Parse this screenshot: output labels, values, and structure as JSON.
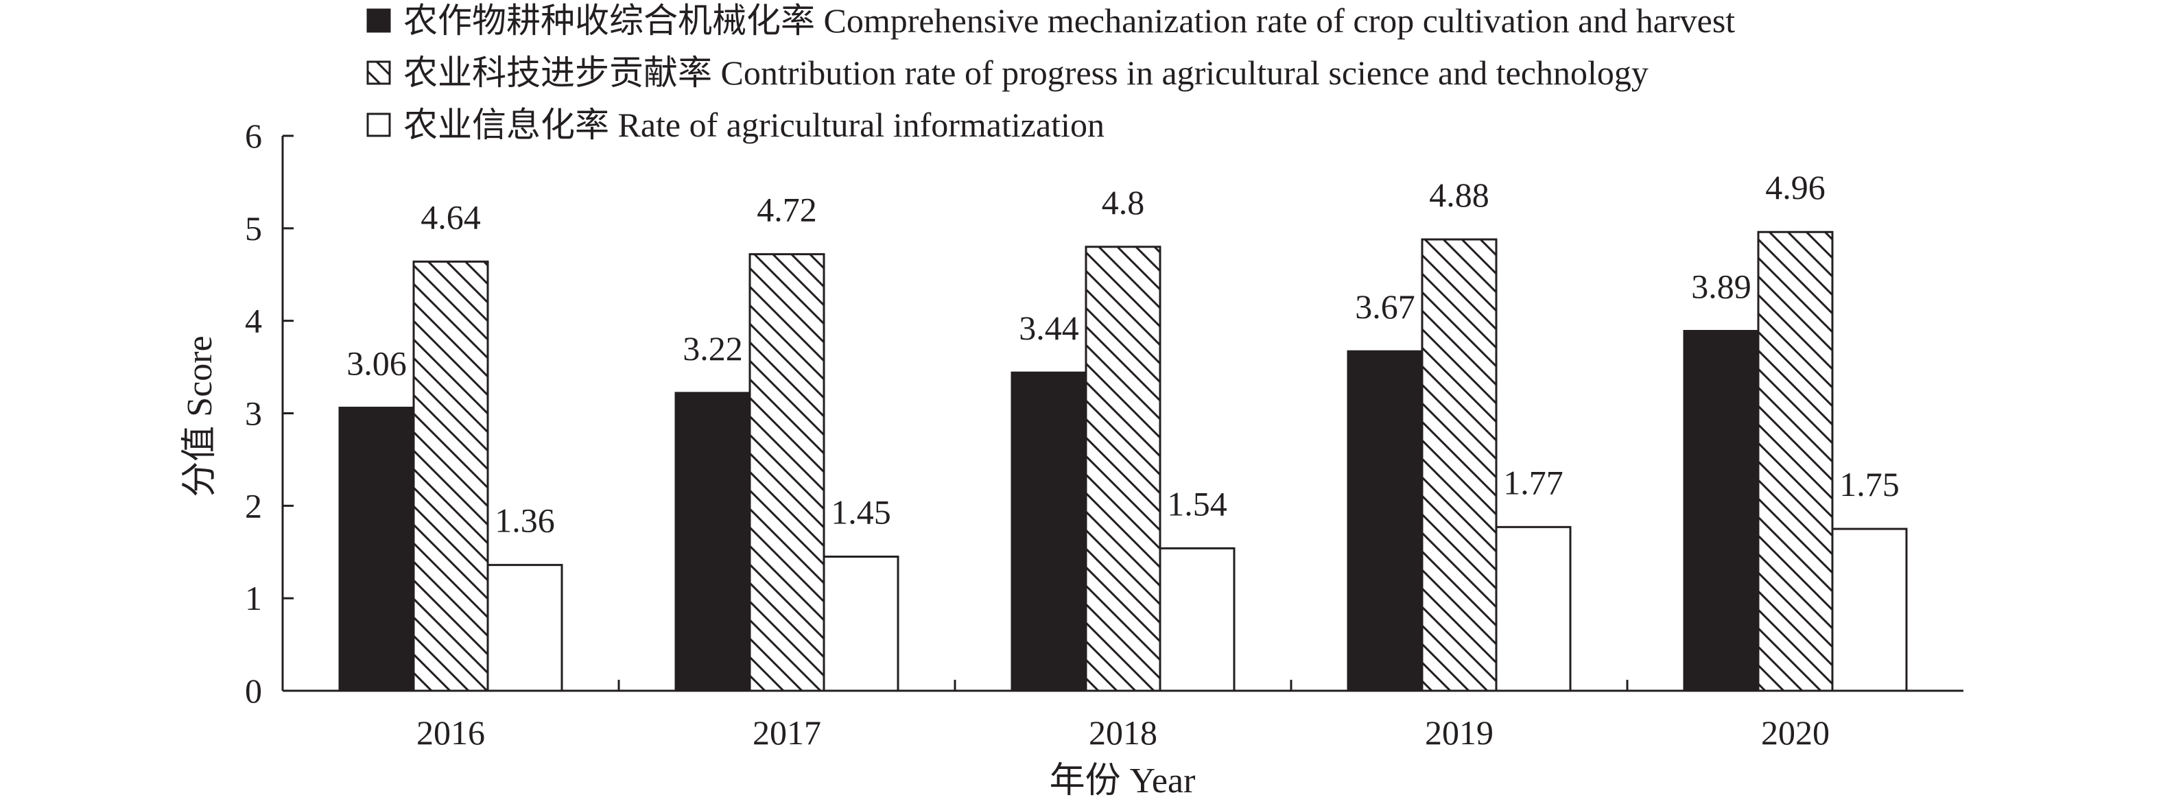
{
  "chart_data": {
    "type": "bar",
    "title": "",
    "xlabel": "年份 Year",
    "ylabel": "分值 Score",
    "ylim": [
      0,
      6
    ],
    "yticks": [
      "0",
      "1",
      "2",
      "3",
      "4",
      "5",
      "6"
    ],
    "categories": [
      "2016",
      "2017",
      "2018",
      "2019",
      "2020"
    ],
    "legend_position": "top",
    "grid": false,
    "series": [
      {
        "name": "农作物耕种收综合机械化率 Comprehensive mechanization rate of crop cultivation and harvest",
        "values": [
          3.06,
          3.22,
          3.44,
          3.67,
          3.89
        ],
        "labels": [
          "3.06",
          "3.22",
          "3.44",
          "3.67",
          "3.89"
        ],
        "fill": "solid",
        "color": "#231f20"
      },
      {
        "name": "农业科技进步贡献率 Contribution rate of progress in agricultural science and technology",
        "values": [
          4.64,
          4.72,
          4.8,
          4.88,
          4.96
        ],
        "labels": [
          "4.64",
          "4.72",
          "4.8",
          "4.88",
          "4.96"
        ],
        "fill": "hatch",
        "color": "#231f20"
      },
      {
        "name": "农业信息化率 Rate of agricultural informatization",
        "values": [
          1.36,
          1.45,
          1.54,
          1.77,
          1.75
        ],
        "labels": [
          "1.36",
          "1.45",
          "1.54",
          "1.77",
          "1.75"
        ],
        "fill": "empty",
        "color": "#231f20"
      }
    ]
  }
}
